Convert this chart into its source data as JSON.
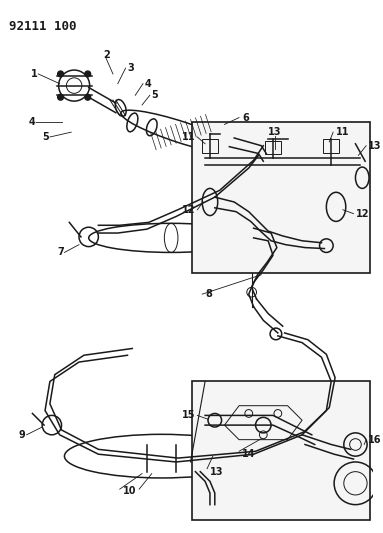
{
  "title": "92111 100",
  "bg_color": "#ffffff",
  "line_color": "#1a1a1a",
  "title_fontsize": 9,
  "label_fontsize": 7,
  "fig_width": 3.83,
  "fig_height": 5.33,
  "dpi": 100
}
